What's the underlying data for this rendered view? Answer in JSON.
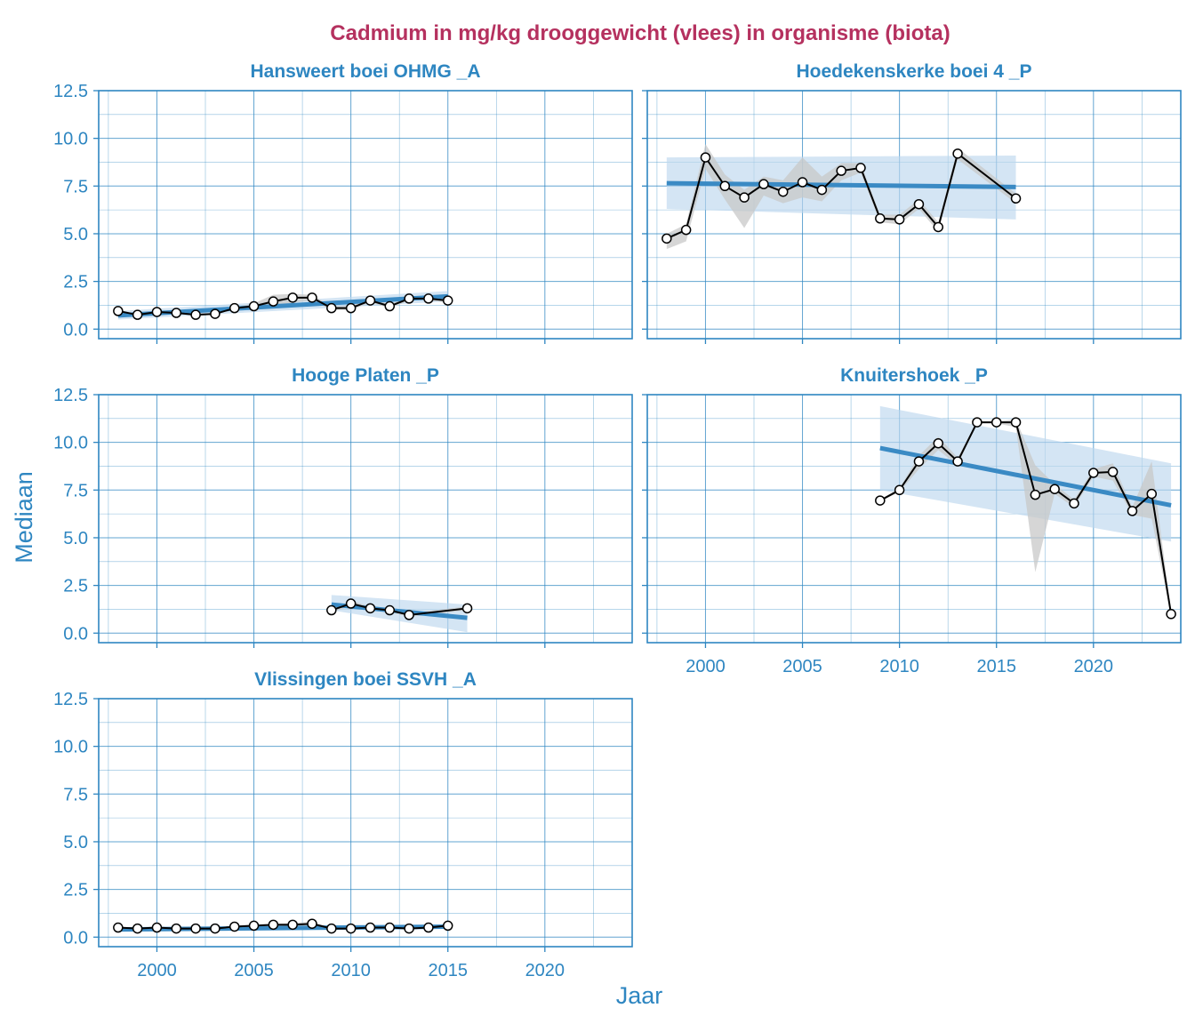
{
  "colors": {
    "title": "#B5315F",
    "accent": "#2E86C1",
    "trend": "#3A8AC4",
    "band": "#BDD7EE",
    "range": "#C8C8C8",
    "line": "#000000"
  },
  "chart_data": {
    "type": "line",
    "title": "Cadmium in mg/kg drooggewicht (vlees) in organisme (biota)",
    "xlabel": "Jaar",
    "ylabel": "Mediaan",
    "xlim": [
      1997,
      2024.5
    ],
    "ylim": [
      -0.5,
      12.5
    ],
    "xticks": [
      2000,
      2005,
      2010,
      2015,
      2020
    ],
    "yticks": [
      0.0,
      2.5,
      5.0,
      7.5,
      10.0,
      12.5
    ],
    "ytick_labels": [
      "0.0",
      "2.5",
      "5.0",
      "7.5",
      "10.0",
      "12.5"
    ],
    "grid": true,
    "panels": [
      {
        "name": "Hansweert boei OHMG _A",
        "x": [
          1998,
          1999,
          2000,
          2001,
          2002,
          2003,
          2004,
          2005,
          2006,
          2007,
          2008,
          2009,
          2010,
          2011,
          2012,
          2013,
          2014,
          2015
        ],
        "values": [
          0.95,
          0.75,
          0.9,
          0.85,
          0.75,
          0.8,
          1.1,
          1.2,
          1.45,
          1.65,
          1.65,
          1.1,
          1.1,
          1.5,
          1.2,
          1.6,
          1.6,
          1.5
        ],
        "range_low": [
          0.9,
          0.7,
          0.85,
          0.8,
          0.7,
          0.75,
          1.05,
          1.0,
          1.2,
          1.4,
          1.5,
          1.0,
          1.0,
          1.4,
          1.1,
          1.5,
          1.5,
          1.4
        ],
        "range_high": [
          1.0,
          0.8,
          0.95,
          0.9,
          0.8,
          0.85,
          1.15,
          1.35,
          1.8,
          1.85,
          1.8,
          1.2,
          1.2,
          1.6,
          1.3,
          1.7,
          1.7,
          1.6
        ],
        "trend": {
          "x": [
            1998,
            2015
          ],
          "y": [
            0.72,
            1.72
          ]
        },
        "band": {
          "x": [
            1998,
            2015
          ],
          "low": [
            0.5,
            1.45
          ],
          "high": [
            0.95,
            2.0
          ]
        }
      },
      {
        "name": "Hoedekenskerke boei 4 _P",
        "x": [
          1998,
          1999,
          2000,
          2001,
          2002,
          2003,
          2004,
          2005,
          2006,
          2007,
          2008,
          2009,
          2010,
          2011,
          2012,
          2013,
          2016
        ],
        "values": [
          4.75,
          5.2,
          9.0,
          7.5,
          6.9,
          7.6,
          7.2,
          7.7,
          7.3,
          8.3,
          8.45,
          5.8,
          5.75,
          6.55,
          5.35,
          9.2,
          6.85
        ],
        "range_low": [
          4.2,
          4.6,
          8.4,
          6.8,
          5.3,
          7.0,
          6.6,
          6.9,
          6.7,
          7.8,
          8.2,
          5.6,
          5.5,
          6.3,
          5.1,
          8.9,
          6.6
        ],
        "range_high": [
          5.0,
          5.5,
          9.7,
          8.1,
          7.3,
          8.0,
          7.8,
          9.0,
          8.0,
          8.7,
          8.7,
          6.0,
          6.0,
          6.8,
          5.6,
          9.5,
          7.1
        ],
        "trend": {
          "x": [
            1998,
            2016
          ],
          "y": [
            7.65,
            7.45
          ]
        },
        "band": {
          "x": [
            1998,
            2016
          ],
          "low": [
            6.3,
            5.75
          ],
          "high": [
            9.0,
            9.1
          ]
        }
      },
      {
        "name": "Hooge Platen _P",
        "x": [
          2009,
          2010,
          2011,
          2012,
          2013,
          2016
        ],
        "values": [
          1.2,
          1.55,
          1.3,
          1.2,
          0.95,
          1.3
        ],
        "range_low": [
          1.1,
          1.4,
          1.2,
          1.1,
          0.85,
          1.2
        ],
        "range_high": [
          1.3,
          1.7,
          1.4,
          1.3,
          1.05,
          1.4
        ],
        "trend": {
          "x": [
            2009,
            2016
          ],
          "y": [
            1.5,
            0.8
          ]
        },
        "band": {
          "x": [
            2009,
            2016
          ],
          "low": [
            1.2,
            0.05
          ],
          "high": [
            2.0,
            1.5
          ]
        }
      },
      {
        "name": "Knuitershoek _P",
        "x": [
          2009,
          2010,
          2011,
          2012,
          2013,
          2014,
          2015,
          2016,
          2017,
          2018,
          2019,
          2020,
          2021,
          2022,
          2023,
          2024
        ],
        "values": [
          6.95,
          7.5,
          9.0,
          9.95,
          9.0,
          11.05,
          11.05,
          11.05,
          7.25,
          7.55,
          6.8,
          8.4,
          8.45,
          6.4,
          7.3,
          1.0
        ],
        "range_low": [
          6.9,
          7.4,
          8.6,
          9.6,
          8.8,
          11.0,
          11.0,
          10.8,
          3.2,
          7.3,
          6.6,
          8.2,
          8.0,
          6.2,
          6.0,
          0.9
        ],
        "range_high": [
          7.0,
          7.6,
          9.3,
          10.3,
          9.2,
          11.1,
          11.1,
          11.2,
          8.8,
          7.8,
          7.0,
          8.6,
          8.9,
          6.6,
          9.0,
          1.1
        ],
        "trend": {
          "x": [
            2009,
            2024
          ],
          "y": [
            9.7,
            6.7
          ]
        },
        "band": {
          "x": [
            2009,
            2024
          ],
          "low": [
            7.5,
            4.8
          ],
          "high": [
            11.9,
            8.9
          ]
        }
      },
      {
        "name": "Vlissingen boei SSVH _A",
        "x": [
          1998,
          1999,
          2000,
          2001,
          2002,
          2003,
          2004,
          2005,
          2006,
          2007,
          2008,
          2009,
          2010,
          2011,
          2012,
          2013,
          2014,
          2015
        ],
        "values": [
          0.5,
          0.45,
          0.5,
          0.45,
          0.45,
          0.45,
          0.55,
          0.6,
          0.65,
          0.65,
          0.7,
          0.45,
          0.45,
          0.5,
          0.5,
          0.45,
          0.5,
          0.6
        ],
        "range_low": [
          0.45,
          0.4,
          0.45,
          0.4,
          0.4,
          0.4,
          0.5,
          0.55,
          0.6,
          0.6,
          0.6,
          0.4,
          0.4,
          0.45,
          0.45,
          0.4,
          0.45,
          0.55
        ],
        "range_high": [
          0.55,
          0.5,
          0.55,
          0.5,
          0.5,
          0.5,
          0.6,
          0.65,
          0.7,
          0.75,
          0.8,
          0.5,
          0.5,
          0.55,
          0.55,
          0.5,
          0.55,
          0.65
        ],
        "trend": {
          "x": [
            1998,
            2015
          ],
          "y": [
            0.4,
            0.55
          ]
        },
        "band": {
          "x": [
            1998,
            2015
          ],
          "low": [
            0.3,
            0.45
          ],
          "high": [
            0.5,
            0.65
          ]
        }
      }
    ]
  }
}
